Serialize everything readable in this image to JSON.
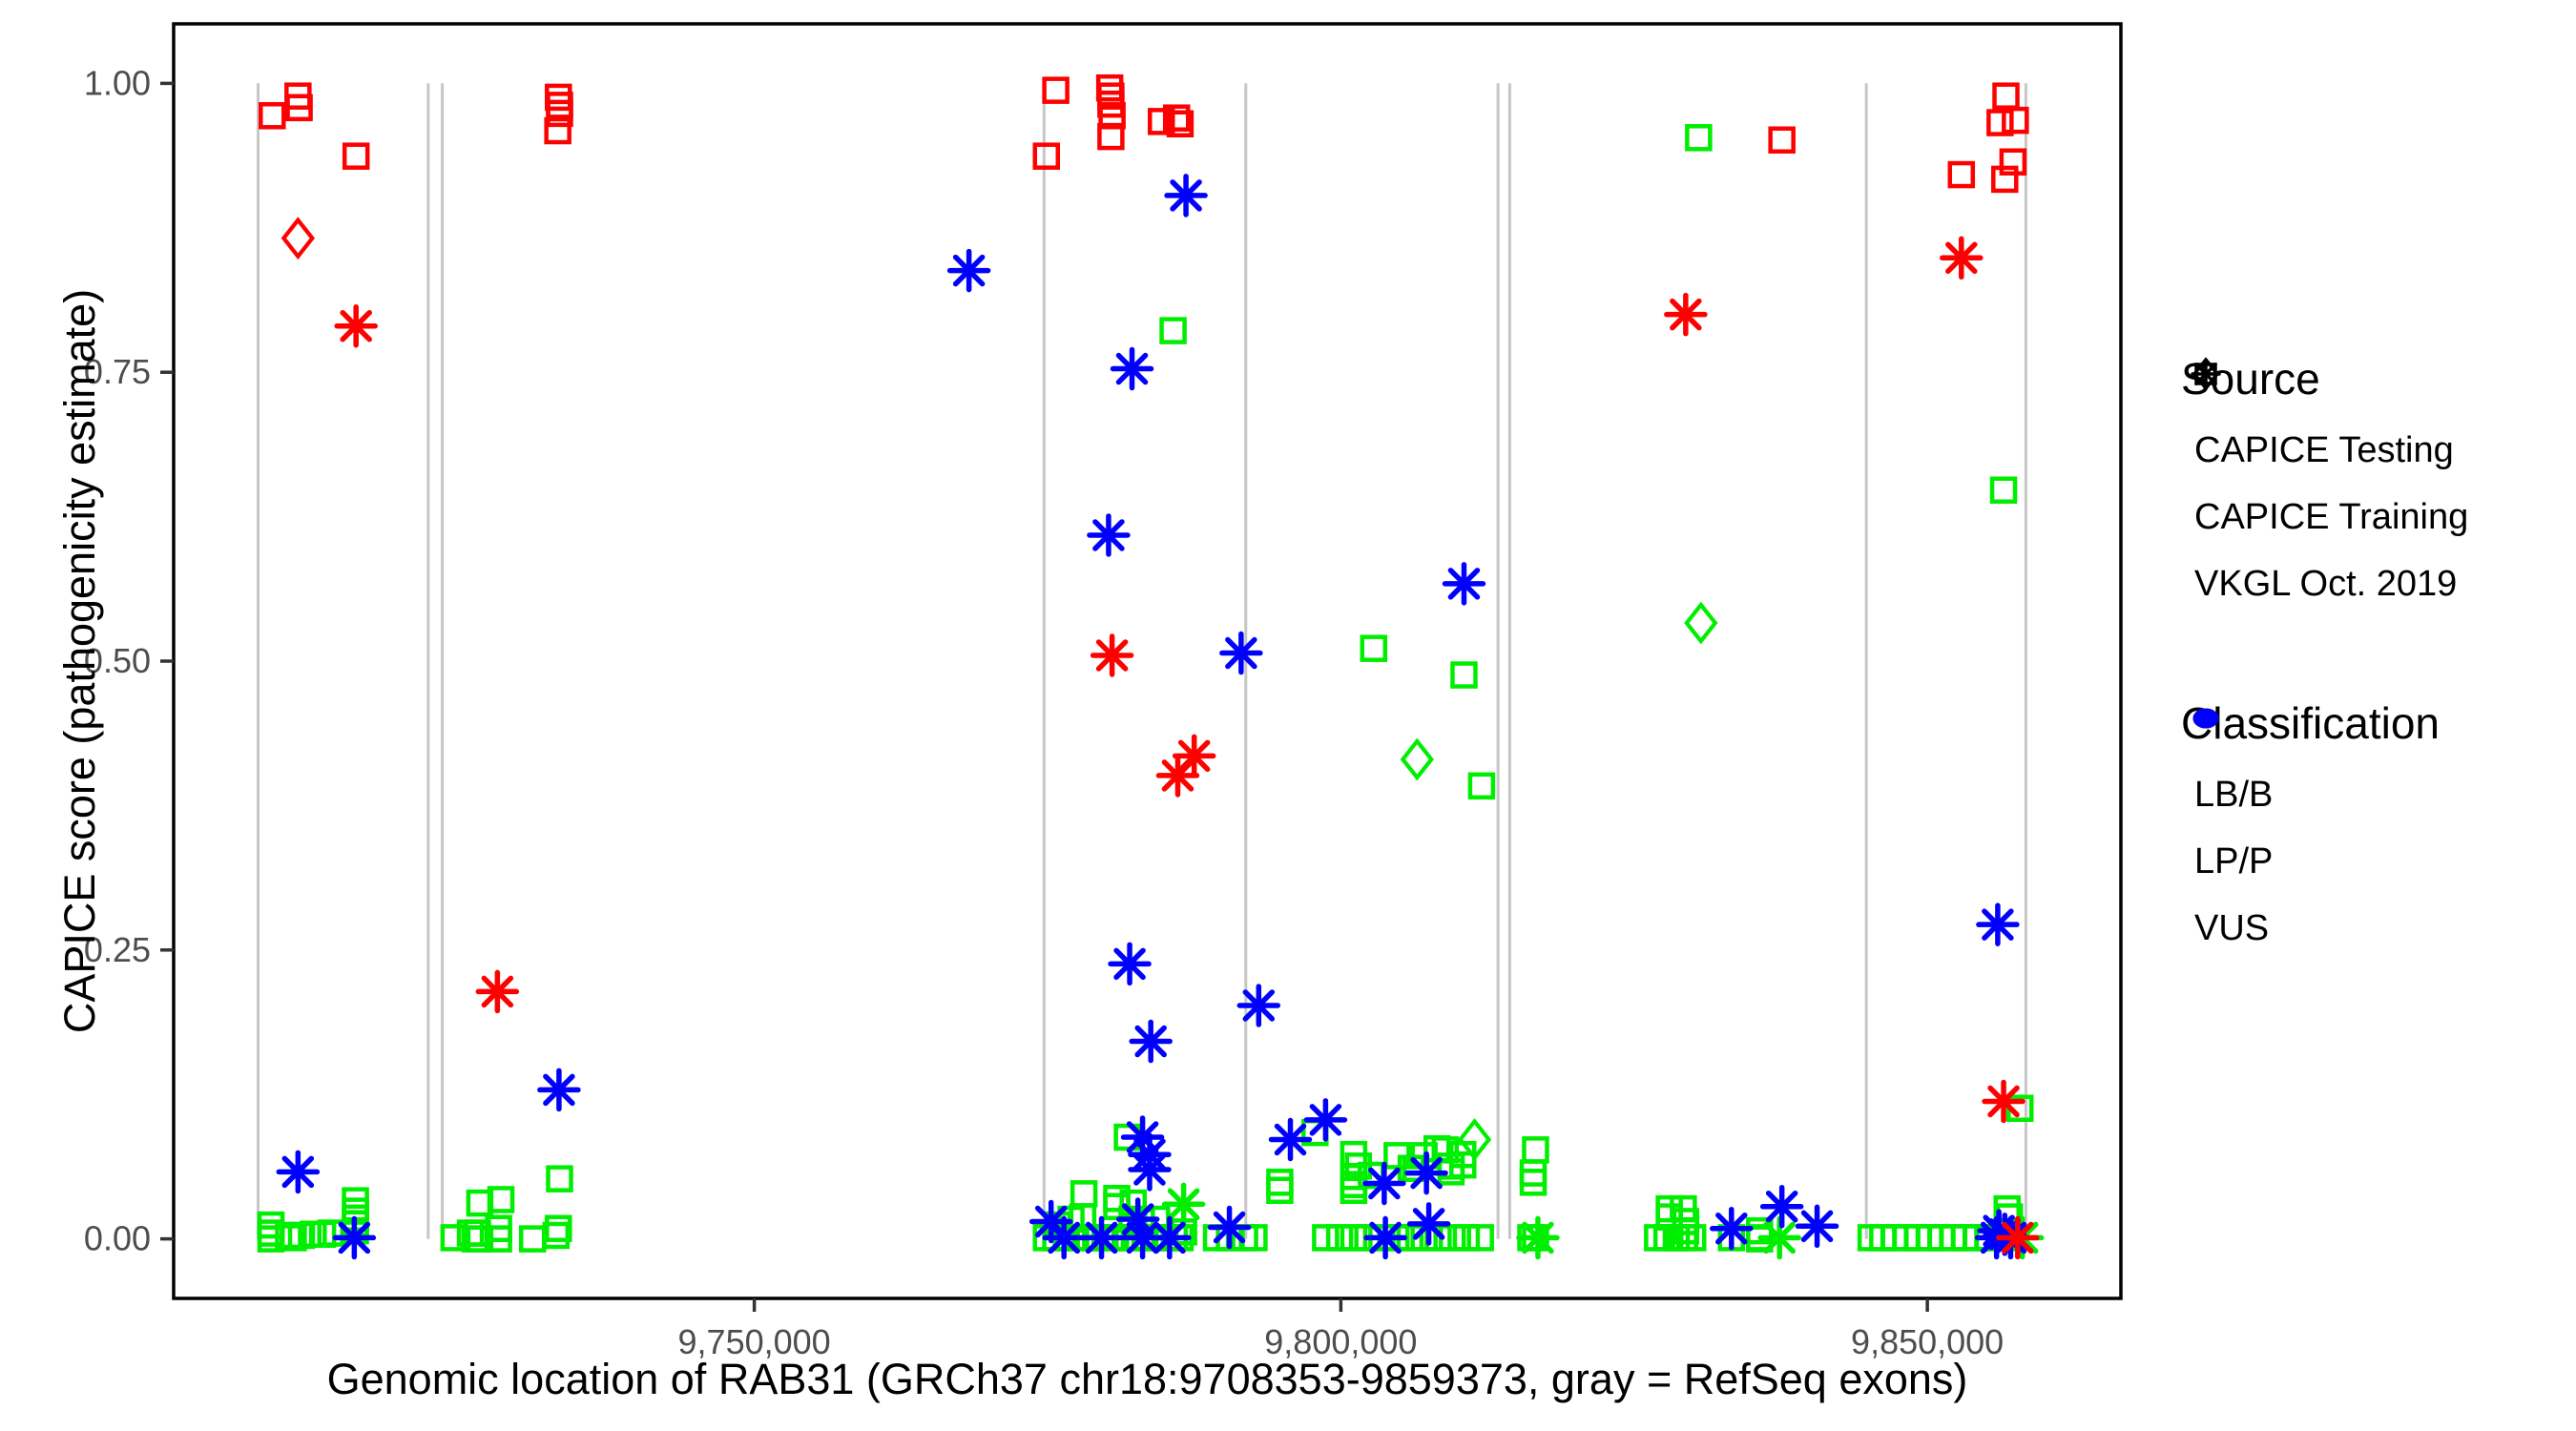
{
  "chart_data": {
    "type": "scatter",
    "title": "",
    "xlabel": "Genomic location of RAB31 (GRCh37 chr18:9708353-9859373, gray = RefSeq exons)",
    "ylabel": "CAPICE score (pathogenicity estimate)",
    "x_domain": [
      9700500,
      9866500
    ],
    "y_domain": [
      -0.0515,
      1.0515
    ],
    "grid": "off",
    "x_ticks": [
      {
        "value": 9750000,
        "label": "9,750,000"
      },
      {
        "value": 9800000,
        "label": "9,800,000"
      },
      {
        "value": 9850000,
        "label": "9,850,000"
      }
    ],
    "y_ticks": [
      {
        "value": 0.0,
        "label": "0.00"
      },
      {
        "value": 0.25,
        "label": "0.25"
      },
      {
        "value": 0.5,
        "label": "0.50"
      },
      {
        "value": 0.75,
        "label": "0.75"
      },
      {
        "value": 1.0,
        "label": "1.00"
      }
    ],
    "exon_guide_lines": [
      9707700,
      9722200,
      9723400,
      9774700,
      9791900,
      9813400,
      9814400,
      9844800,
      9858400
    ],
    "exon_line_color": "#c6c6c6",
    "panel_border_color": "#000000",
    "tick_color": "#333333",
    "tick_label_color": "#4d4d4d",
    "classification_colors": {
      "LB/B": "#00ee00",
      "LP/P": "#ff0000",
      "VUS": "#0000ff"
    },
    "marker_legend": {
      "diamond": "CAPICE Testing",
      "square": "CAPICE Training",
      "asterisk": "VKGL Oct. 2019"
    },
    "points_format": [
      "genomic_position",
      "capice_score",
      "marker",
      "classification"
    ],
    "points": [
      [
        9708900,
        0.972,
        "square",
        "LP/P"
      ],
      [
        9711100,
        0.989,
        "square",
        "LP/P"
      ],
      [
        9711200,
        0.979,
        "square",
        "LP/P"
      ],
      [
        9716050,
        0.937,
        "square",
        "LP/P"
      ],
      [
        9733300,
        0.988,
        "square",
        "LP/P"
      ],
      [
        9733400,
        0.981,
        "square",
        "LP/P"
      ],
      [
        9733400,
        0.974,
        "square",
        "LP/P"
      ],
      [
        9733250,
        0.959,
        "square",
        "LP/P"
      ],
      [
        9775700,
        0.994,
        "square",
        "LP/P"
      ],
      [
        9774900,
        0.937,
        "square",
        "LP/P"
      ],
      [
        9780300,
        0.996,
        "square",
        "LP/P"
      ],
      [
        9780400,
        0.989,
        "square",
        "LP/P"
      ],
      [
        9780400,
        0.982,
        "square",
        "LP/P"
      ],
      [
        9780500,
        0.972,
        "square",
        "LP/P"
      ],
      [
        9780400,
        0.954,
        "square",
        "LP/P"
      ],
      [
        9784700,
        0.967,
        "square",
        "LP/P"
      ],
      [
        9786000,
        0.97,
        "square",
        "LP/P"
      ],
      [
        9786300,
        0.965,
        "square",
        "LP/P"
      ],
      [
        9837600,
        0.951,
        "square",
        "LP/P"
      ],
      [
        9856700,
        0.989,
        "square",
        "LP/P"
      ],
      [
        9856200,
        0.966,
        "square",
        "LP/P"
      ],
      [
        9857500,
        0.968,
        "square",
        "LP/P"
      ],
      [
        9852900,
        0.921,
        "square",
        "LP/P"
      ],
      [
        9857300,
        0.932,
        "square",
        "LP/P"
      ],
      [
        9856600,
        0.917,
        "square",
        "LP/P"
      ],
      [
        9711100,
        0.866,
        "diamond",
        "LP/P"
      ],
      [
        9716050,
        0.79,
        "asterisk",
        "LP/P"
      ],
      [
        9728100,
        0.214,
        "asterisk",
        "LP/P"
      ],
      [
        9780500,
        0.505,
        "asterisk",
        "LP/P"
      ],
      [
        9787500,
        0.418,
        "asterisk",
        "LP/P"
      ],
      [
        9786100,
        0.401,
        "asterisk",
        "LP/P"
      ],
      [
        9829400,
        0.8,
        "asterisk",
        "LP/P"
      ],
      [
        9852900,
        0.849,
        "asterisk",
        "LP/P"
      ],
      [
        9856500,
        0.119,
        "asterisk",
        "LP/P"
      ],
      [
        9857700,
        0.001,
        "asterisk",
        "LP/P"
      ],
      [
        9711100,
        0.058,
        "asterisk",
        "VUS"
      ],
      [
        9715900,
        0.001,
        "asterisk",
        "VUS"
      ],
      [
        9733350,
        0.129,
        "asterisk",
        "VUS"
      ],
      [
        9768300,
        0.838,
        "asterisk",
        "VUS"
      ],
      [
        9786800,
        0.903,
        "asterisk",
        "VUS"
      ],
      [
        9780200,
        0.609,
        "asterisk",
        "VUS"
      ],
      [
        9782200,
        0.753,
        "asterisk",
        "VUS"
      ],
      [
        9810500,
        0.567,
        "asterisk",
        "VUS"
      ],
      [
        9791500,
        0.507,
        "asterisk",
        "VUS"
      ],
      [
        9782000,
        0.238,
        "asterisk",
        "VUS"
      ],
      [
        9793000,
        0.202,
        "asterisk",
        "VUS"
      ],
      [
        9783800,
        0.171,
        "asterisk",
        "VUS"
      ],
      [
        9783100,
        0.088,
        "asterisk",
        "VUS"
      ],
      [
        9783700,
        0.073,
        "asterisk",
        "VUS"
      ],
      [
        9783700,
        0.06,
        "asterisk",
        "VUS"
      ],
      [
        9775300,
        0.015,
        "asterisk",
        "VUS"
      ],
      [
        9782700,
        0.017,
        "asterisk",
        "VUS"
      ],
      [
        9776400,
        0.001,
        "asterisk",
        "VUS"
      ],
      [
        9779600,
        0.001,
        "asterisk",
        "VUS"
      ],
      [
        9783100,
        0.001,
        "asterisk",
        "VUS"
      ],
      [
        9785400,
        0.001,
        "asterisk",
        "VUS"
      ],
      [
        9790500,
        0.01,
        "asterisk",
        "VUS"
      ],
      [
        9798700,
        0.103,
        "asterisk",
        "VUS"
      ],
      [
        9795700,
        0.086,
        "asterisk",
        "VUS"
      ],
      [
        9807300,
        0.057,
        "asterisk",
        "VUS"
      ],
      [
        9803700,
        0.048,
        "asterisk",
        "VUS"
      ],
      [
        9807500,
        0.013,
        "asterisk",
        "VUS"
      ],
      [
        9803800,
        0.001,
        "asterisk",
        "VUS"
      ],
      [
        9833300,
        0.009,
        "asterisk",
        "VUS"
      ],
      [
        9837600,
        0.028,
        "asterisk",
        "VUS"
      ],
      [
        9840600,
        0.011,
        "asterisk",
        "VUS"
      ],
      [
        9856000,
        0.272,
        "asterisk",
        "VUS"
      ],
      [
        9856100,
        0.007,
        "asterisk",
        "VUS"
      ],
      [
        9856600,
        0.004,
        "asterisk",
        "VUS"
      ],
      [
        9857100,
        0.001,
        "asterisk",
        "VUS"
      ],
      [
        9855900,
        0.001,
        "asterisk",
        "VUS"
      ],
      [
        9806500,
        0.415,
        "diamond",
        "LB/B"
      ],
      [
        9830700,
        0.533,
        "diamond",
        "LB/B"
      ],
      [
        9811400,
        0.086,
        "diamond",
        "LB/B"
      ],
      [
        9786600,
        0.03,
        "asterisk",
        "LB/B"
      ],
      [
        9816800,
        0.001,
        "asterisk",
        "LB/B"
      ],
      [
        9837400,
        0.001,
        "asterisk",
        "LB/B"
      ],
      [
        9858100,
        0.001,
        "asterisk",
        "LB/B"
      ],
      [
        9830500,
        0.953,
        "square",
        "LB/B"
      ],
      [
        9856500,
        0.648,
        "square",
        "LB/B"
      ],
      [
        9785700,
        0.786,
        "square",
        "LB/B"
      ],
      [
        9802800,
        0.511,
        "square",
        "LB/B"
      ],
      [
        9810500,
        0.488,
        "square",
        "LB/B"
      ],
      [
        9812000,
        0.392,
        "square",
        "LB/B"
      ],
      [
        9857900,
        0.113,
        "square",
        "LB/B"
      ],
      [
        9797800,
        0.092,
        "square",
        "LB/B"
      ],
      [
        9781800,
        0.088,
        "square",
        "LB/B"
      ],
      [
        9708800,
        0.012,
        "square",
        "LB/B"
      ],
      [
        9708800,
        0.005,
        "square",
        "LB/B"
      ],
      [
        9708800,
        0.0,
        "square",
        "LB/B"
      ],
      [
        9710300,
        0.003,
        "square",
        "LB/B"
      ],
      [
        9710700,
        0.001,
        "square",
        "LB/B"
      ],
      [
        9711400,
        0.003,
        "square",
        "LB/B"
      ],
      [
        9712400,
        0.004,
        "square",
        "LB/B"
      ],
      [
        9713200,
        0.004,
        "square",
        "LB/B"
      ],
      [
        9713900,
        0.005,
        "square",
        "LB/B"
      ],
      [
        9716000,
        0.033,
        "square",
        "LB/B"
      ],
      [
        9716000,
        0.024,
        "square",
        "LB/B"
      ],
      [
        9716000,
        0.018,
        "square",
        "LB/B"
      ],
      [
        9716000,
        0.013,
        "square",
        "LB/B"
      ],
      [
        9716000,
        0.007,
        "square",
        "LB/B"
      ],
      [
        9726600,
        0.031,
        "square",
        "LB/B"
      ],
      [
        9728400,
        0.034,
        "square",
        "LB/B"
      ],
      [
        9733400,
        0.052,
        "square",
        "LB/B"
      ],
      [
        9724400,
        0.001,
        "square",
        "LB/B"
      ],
      [
        9725800,
        0.005,
        "square",
        "LB/B"
      ],
      [
        9726200,
        0.0,
        "square",
        "LB/B"
      ],
      [
        9726400,
        0.005,
        "square",
        "LB/B"
      ],
      [
        9726600,
        0.0,
        "square",
        "LB/B"
      ],
      [
        9728200,
        0.009,
        "square",
        "LB/B"
      ],
      [
        9728200,
        0.0,
        "square",
        "LB/B"
      ],
      [
        9731100,
        0.0,
        "square",
        "LB/B"
      ],
      [
        9733100,
        0.003,
        "square",
        "LB/B"
      ],
      [
        9733300,
        0.009,
        "square",
        "LB/B"
      ],
      [
        9778100,
        0.039,
        "square",
        "LB/B"
      ],
      [
        9780900,
        0.035,
        "square",
        "LB/B"
      ],
      [
        9780900,
        0.028,
        "square",
        "LB/B"
      ],
      [
        9782300,
        0.031,
        "square",
        "LB/B"
      ],
      [
        9775900,
        0.012,
        "square",
        "LB/B"
      ],
      [
        9777000,
        0.017,
        "square",
        "LB/B"
      ],
      [
        9778000,
        0.019,
        "square",
        "LB/B"
      ],
      [
        9782200,
        0.017,
        "square",
        "LB/B"
      ],
      [
        9783000,
        0.015,
        "square",
        "LB/B"
      ],
      [
        9784300,
        0.017,
        "square",
        "LB/B"
      ],
      [
        9786600,
        0.006,
        "square",
        "LB/B"
      ],
      [
        9774900,
        0.001,
        "square",
        "LB/B"
      ],
      [
        9775700,
        0.001,
        "square",
        "LB/B"
      ],
      [
        9776600,
        0.001,
        "square",
        "LB/B"
      ],
      [
        9777400,
        0.001,
        "square",
        "LB/B"
      ],
      [
        9778200,
        0.001,
        "square",
        "LB/B"
      ],
      [
        9779100,
        0.001,
        "square",
        "LB/B"
      ],
      [
        9779900,
        0.001,
        "square",
        "LB/B"
      ],
      [
        9780800,
        0.001,
        "square",
        "LB/B"
      ],
      [
        9781600,
        0.001,
        "square",
        "LB/B"
      ],
      [
        9782400,
        0.001,
        "square",
        "LB/B"
      ],
      [
        9783300,
        0.001,
        "square",
        "LB/B"
      ],
      [
        9784100,
        0.001,
        "square",
        "LB/B"
      ],
      [
        9785000,
        0.001,
        "square",
        "LB/B"
      ],
      [
        9785800,
        0.001,
        "square",
        "LB/B"
      ],
      [
        9786300,
        0.001,
        "square",
        "LB/B"
      ],
      [
        9789400,
        0.001,
        "square",
        "LB/B"
      ],
      [
        9790500,
        0.001,
        "square",
        "LB/B"
      ],
      [
        9791800,
        0.001,
        "square",
        "LB/B"
      ],
      [
        9792600,
        0.001,
        "square",
        "LB/B"
      ],
      [
        9794800,
        0.049,
        "square",
        "LB/B"
      ],
      [
        9794800,
        0.042,
        "square",
        "LB/B"
      ],
      [
        9801100,
        0.073,
        "square",
        "LB/B"
      ],
      [
        9801500,
        0.063,
        "square",
        "LB/B"
      ],
      [
        9804800,
        0.072,
        "square",
        "LB/B"
      ],
      [
        9807100,
        0.072,
        "square",
        "LB/B"
      ],
      [
        9808200,
        0.078,
        "square",
        "LB/B"
      ],
      [
        9808900,
        0.077,
        "square",
        "LB/B"
      ],
      [
        9810400,
        0.073,
        "square",
        "LB/B"
      ],
      [
        9810400,
        0.064,
        "square",
        "LB/B"
      ],
      [
        9806000,
        0.061,
        "square",
        "LB/B"
      ],
      [
        9806400,
        0.061,
        "square",
        "LB/B"
      ],
      [
        9802600,
        0.055,
        "square",
        "LB/B"
      ],
      [
        9801100,
        0.054,
        "square",
        "LB/B"
      ],
      [
        9801100,
        0.047,
        "square",
        "LB/B"
      ],
      [
        9801100,
        0.042,
        "square",
        "LB/B"
      ],
      [
        9809400,
        0.063,
        "square",
        "LB/B"
      ],
      [
        9809400,
        0.058,
        "square",
        "LB/B"
      ],
      [
        9798700,
        0.001,
        "square",
        "LB/B"
      ],
      [
        9799900,
        0.001,
        "square",
        "LB/B"
      ],
      [
        9801100,
        0.001,
        "square",
        "LB/B"
      ],
      [
        9802300,
        0.001,
        "square",
        "LB/B"
      ],
      [
        9803500,
        0.001,
        "square",
        "LB/B"
      ],
      [
        9804700,
        0.001,
        "square",
        "LB/B"
      ],
      [
        9805900,
        0.001,
        "square",
        "LB/B"
      ],
      [
        9807100,
        0.001,
        "square",
        "LB/B"
      ],
      [
        9808300,
        0.001,
        "square",
        "LB/B"
      ],
      [
        9809500,
        0.001,
        "square",
        "LB/B"
      ],
      [
        9810700,
        0.001,
        "square",
        "LB/B"
      ],
      [
        9811900,
        0.001,
        "square",
        "LB/B"
      ],
      [
        9816600,
        0.077,
        "square",
        "LB/B"
      ],
      [
        9816400,
        0.057,
        "square",
        "LB/B"
      ],
      [
        9816400,
        0.049,
        "square",
        "LB/B"
      ],
      [
        9816200,
        0.001,
        "square",
        "LB/B"
      ],
      [
        9816600,
        0.001,
        "square",
        "LB/B"
      ],
      [
        9828000,
        0.026,
        "square",
        "LB/B"
      ],
      [
        9829200,
        0.026,
        "square",
        "LB/B"
      ],
      [
        9828000,
        0.019,
        "square",
        "LB/B"
      ],
      [
        9829400,
        0.015,
        "square",
        "LB/B"
      ],
      [
        9829400,
        0.007,
        "square",
        "LB/B"
      ],
      [
        9827000,
        0.001,
        "square",
        "LB/B"
      ],
      [
        9827800,
        0.001,
        "square",
        "LB/B"
      ],
      [
        9828600,
        0.001,
        "square",
        "LB/B"
      ],
      [
        9829300,
        0.001,
        "square",
        "LB/B"
      ],
      [
        9830000,
        0.001,
        "square",
        "LB/B"
      ],
      [
        9833300,
        0.001,
        "square",
        "LB/B"
      ],
      [
        9835700,
        0.007,
        "square",
        "LB/B"
      ],
      [
        9835700,
        0.001,
        "square",
        "LB/B"
      ],
      [
        9835700,
        0.0,
        "square",
        "LB/B"
      ],
      [
        9856800,
        0.026,
        "square",
        "LB/B"
      ],
      [
        9857000,
        0.019,
        "square",
        "LB/B"
      ],
      [
        9845200,
        0.001,
        "square",
        "LB/B"
      ],
      [
        9846200,
        0.001,
        "square",
        "LB/B"
      ],
      [
        9847200,
        0.001,
        "square",
        "LB/B"
      ],
      [
        9848200,
        0.001,
        "square",
        "LB/B"
      ],
      [
        9849200,
        0.001,
        "square",
        "LB/B"
      ],
      [
        9850200,
        0.001,
        "square",
        "LB/B"
      ],
      [
        9851200,
        0.001,
        "square",
        "LB/B"
      ],
      [
        9852200,
        0.001,
        "square",
        "LB/B"
      ],
      [
        9853200,
        0.001,
        "square",
        "LB/B"
      ],
      [
        9854200,
        0.001,
        "square",
        "LB/B"
      ],
      [
        9855200,
        0.001,
        "square",
        "LB/B"
      ],
      [
        9856200,
        0.001,
        "square",
        "LB/B"
      ],
      [
        9857000,
        0.001,
        "square",
        "LB/B"
      ]
    ]
  },
  "legend": {
    "source": {
      "title": "Source",
      "items": [
        {
          "icon": "diamond-icon",
          "label": "CAPICE Testing"
        },
        {
          "icon": "square-icon",
          "label": "CAPICE Training"
        },
        {
          "icon": "asterisk-icon",
          "label": "VKGL Oct. 2019"
        }
      ]
    },
    "classification": {
      "title": "Classification",
      "items": [
        {
          "icon": "dot-icon",
          "label": "LB/B",
          "color": "#00ee00"
        },
        {
          "icon": "dot-icon",
          "label": "LP/P",
          "color": "#ff0000"
        },
        {
          "icon": "dot-icon",
          "label": "VUS",
          "color": "#0000ff"
        }
      ]
    }
  }
}
